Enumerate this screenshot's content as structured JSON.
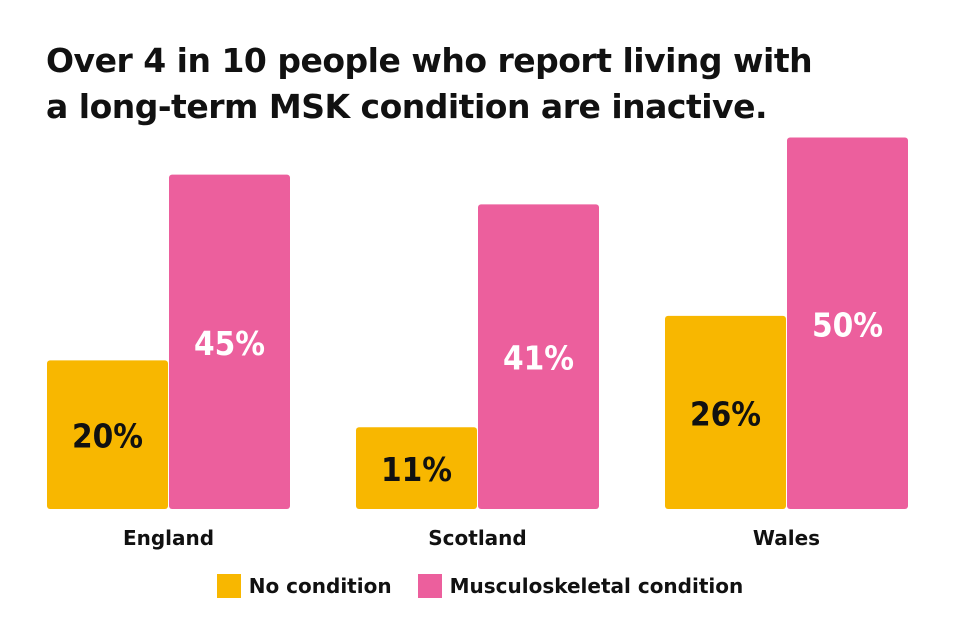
{
  "title_lines": [
    "Over 4 in 10 people who report living with",
    "a long-term MSK condition are inactive."
  ],
  "colors": {
    "no_condition": "#F8B700",
    "msk": "#EC5F9D",
    "text": "#111111",
    "label_on_pink": "#ffffff",
    "label_on_yellow": "#111111"
  },
  "chart_data": {
    "type": "bar",
    "categories": [
      "England",
      "Scotland",
      "Wales"
    ],
    "series": [
      {
        "name": "No condition",
        "values": [
          20,
          11,
          26
        ],
        "labels": [
          "20%",
          "11%",
          "26%"
        ]
      },
      {
        "name": "Musculoskeletal condition",
        "values": [
          45,
          41,
          50
        ],
        "labels": [
          "45%",
          "41%",
          "50%"
        ]
      }
    ],
    "ylim": [
      0,
      50
    ],
    "grid": false,
    "legend": "bottom"
  }
}
